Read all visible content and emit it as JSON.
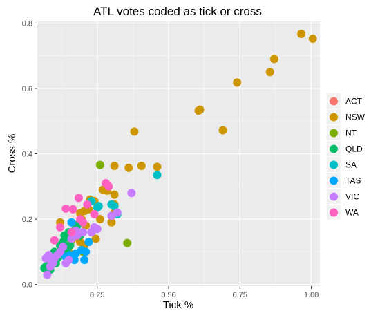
{
  "chart_data": {
    "type": "scatter",
    "title": "ATL votes coded as tick or cross",
    "xlabel": "Tick %",
    "ylabel": "Cross %",
    "xlim": [
      0.04,
      1.03
    ],
    "ylim": [
      -0.005,
      0.805
    ],
    "x_ticks": [
      0.25,
      0.5,
      0.75,
      1.0
    ],
    "x_tick_labels": [
      "0.25",
      "0.50",
      "0.75",
      "1.00"
    ],
    "y_ticks": [
      0.0,
      0.2,
      0.4,
      0.6,
      0.8
    ],
    "y_tick_labels": [
      "0.0",
      "0.2",
      "0.4",
      "0.6",
      "0.8"
    ],
    "grid": true,
    "legend_position": "right",
    "series": [
      {
        "name": "ACT",
        "color": "#F8766D",
        "points": []
      },
      {
        "name": "NSW",
        "color": "#CD9600",
        "points": [
          [
            0.965,
            0.767
          ],
          [
            1.005,
            0.752
          ],
          [
            0.87,
            0.69
          ],
          [
            0.855,
            0.65
          ],
          [
            0.74,
            0.618
          ],
          [
            0.61,
            0.535
          ],
          [
            0.605,
            0.532
          ],
          [
            0.38,
            0.468
          ],
          [
            0.69,
            0.472
          ],
          [
            0.31,
            0.363
          ],
          [
            0.36,
            0.357
          ],
          [
            0.405,
            0.363
          ],
          [
            0.46,
            0.36
          ],
          [
            0.27,
            0.29
          ],
          [
            0.285,
            0.287
          ],
          [
            0.31,
            0.275
          ],
          [
            0.225,
            0.26
          ],
          [
            0.24,
            0.255
          ],
          [
            0.31,
            0.245
          ],
          [
            0.22,
            0.23
          ],
          [
            0.205,
            0.225
          ],
          [
            0.19,
            0.218
          ],
          [
            0.31,
            0.22
          ],
          [
            0.195,
            0.2
          ],
          [
            0.26,
            0.2
          ],
          [
            0.3,
            0.19
          ],
          [
            0.12,
            0.19
          ],
          [
            0.175,
            0.182
          ],
          [
            0.21,
            0.18
          ],
          [
            0.23,
            0.16
          ],
          [
            0.18,
            0.145
          ],
          [
            0.19,
            0.13
          ],
          [
            0.245,
            0.14
          ],
          [
            0.16,
            0.135
          ],
          [
            0.205,
            0.12
          ],
          [
            0.13,
            0.12
          ],
          [
            0.15,
            0.1
          ],
          [
            0.14,
            0.085
          ]
        ]
      },
      {
        "name": "NT",
        "color": "#7CAE00",
        "points": [
          [
            0.26,
            0.366
          ],
          [
            0.355,
            0.127
          ],
          [
            0.13,
            0.09
          ],
          [
            0.1,
            0.07
          ],
          [
            0.2,
            0.1
          ]
        ]
      },
      {
        "name": "QLD",
        "color": "#00BE67",
        "points": [
          [
            0.065,
            0.05
          ],
          [
            0.07,
            0.055
          ],
          [
            0.08,
            0.06
          ],
          [
            0.085,
            0.045
          ],
          [
            0.1,
            0.1
          ],
          [
            0.11,
            0.08
          ],
          [
            0.12,
            0.12
          ],
          [
            0.13,
            0.13
          ],
          [
            0.14,
            0.145
          ],
          [
            0.15,
            0.16
          ],
          [
            0.17,
            0.165
          ],
          [
            0.18,
            0.18
          ],
          [
            0.115,
            0.085
          ],
          [
            0.125,
            0.1
          ],
          [
            0.135,
            0.15
          ],
          [
            0.155,
            0.12
          ],
          [
            0.19,
            0.15
          ],
          [
            0.105,
            0.065
          ],
          [
            0.09,
            0.075
          ],
          [
            0.145,
            0.11
          ]
        ]
      },
      {
        "name": "SA",
        "color": "#00BFC4",
        "points": [
          [
            0.46,
            0.335
          ],
          [
            0.25,
            0.235
          ],
          [
            0.23,
            0.255
          ],
          [
            0.3,
            0.245
          ],
          [
            0.32,
            0.215
          ],
          [
            0.31,
            0.24
          ],
          [
            0.255,
            0.24
          ]
        ]
      },
      {
        "name": "TAS",
        "color": "#00A9FF",
        "points": [
          [
            0.195,
            0.105
          ],
          [
            0.21,
            0.1
          ],
          [
            0.205,
            0.075
          ],
          [
            0.17,
            0.075
          ],
          [
            0.155,
            0.09
          ],
          [
            0.14,
            0.085
          ],
          [
            0.16,
            0.19
          ],
          [
            0.22,
            0.13
          ],
          [
            0.175,
            0.095
          ]
        ]
      },
      {
        "name": "VIC",
        "color": "#C77CFF",
        "points": [
          [
            0.37,
            0.28
          ],
          [
            0.32,
            0.22
          ],
          [
            0.3,
            0.21
          ],
          [
            0.24,
            0.175
          ],
          [
            0.25,
            0.17
          ],
          [
            0.23,
            0.16
          ],
          [
            0.2,
            0.16
          ],
          [
            0.18,
            0.15
          ],
          [
            0.16,
            0.14
          ],
          [
            0.13,
            0.115
          ],
          [
            0.12,
            0.1
          ],
          [
            0.11,
            0.09
          ],
          [
            0.1,
            0.08
          ],
          [
            0.09,
            0.07
          ],
          [
            0.08,
            0.09
          ],
          [
            0.075,
            0.03
          ],
          [
            0.085,
            0.055
          ],
          [
            0.095,
            0.065
          ],
          [
            0.07,
            0.08
          ],
          [
            0.14,
            0.065
          ],
          [
            0.15,
            0.075
          ],
          [
            0.175,
            0.165
          ]
        ]
      },
      {
        "name": "WA",
        "color": "#FF61C3",
        "points": [
          [
            0.29,
            0.3
          ],
          [
            0.28,
            0.31
          ],
          [
            0.185,
            0.265
          ],
          [
            0.215,
            0.245
          ],
          [
            0.19,
            0.2
          ],
          [
            0.2,
            0.19
          ],
          [
            0.24,
            0.215
          ],
          [
            0.14,
            0.232
          ],
          [
            0.165,
            0.23
          ],
          [
            0.12,
            0.175
          ],
          [
            0.1,
            0.135
          ],
          [
            0.16,
            0.16
          ]
        ]
      }
    ]
  }
}
